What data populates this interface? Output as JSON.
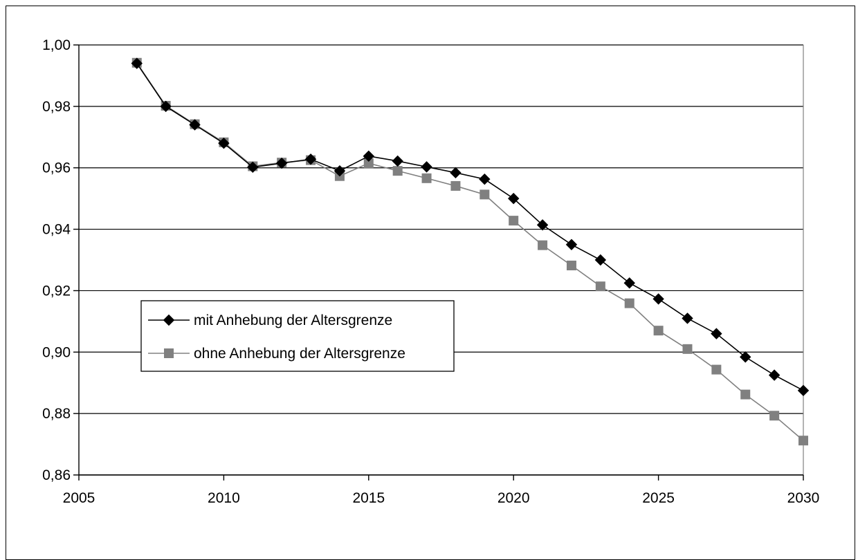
{
  "chart_data": {
    "type": "line",
    "title": "",
    "xlabel": "",
    "ylabel": "",
    "xlim": [
      2005,
      2030
    ],
    "ylim": [
      0.86,
      1.0
    ],
    "x_ticks": [
      2005,
      2010,
      2015,
      2020,
      2025,
      2030
    ],
    "y_ticks": [
      0.86,
      0.88,
      0.9,
      0.92,
      0.94,
      0.96,
      0.98,
      1.0
    ],
    "x_tick_labels": [
      "2005",
      "2010",
      "2015",
      "2020",
      "2025",
      "2030"
    ],
    "y_tick_labels": [
      "0,86",
      "0,88",
      "0,90",
      "0,92",
      "0,94",
      "0,96",
      "0,98",
      "1,00"
    ],
    "grid": "horizontal",
    "legend_position": "left",
    "x": [
      2007,
      2008,
      2009,
      2010,
      2011,
      2012,
      2013,
      2014,
      2015,
      2016,
      2017,
      2018,
      2019,
      2020,
      2021,
      2022,
      2023,
      2024,
      2025,
      2026,
      2027,
      2028,
      2029,
      2030
    ],
    "series": [
      {
        "name": "mit Anhebung der Altersgrenze",
        "marker": "diamond",
        "color": "#000000",
        "values": [
          0.994,
          0.98,
          0.974,
          0.968,
          0.9602,
          0.9615,
          0.9628,
          0.959,
          0.9638,
          0.9622,
          0.9603,
          0.9584,
          0.9563,
          0.95,
          0.9414,
          0.935,
          0.93,
          0.9225,
          0.9173,
          0.911,
          0.906,
          0.8984,
          0.8925,
          0.8875
        ]
      },
      {
        "name": "ohne Anhebung der Altersgrenze",
        "marker": "square",
        "color": "#808080",
        "values": [
          0.9942,
          0.9802,
          0.9742,
          0.9683,
          0.9605,
          0.9617,
          0.9625,
          0.9573,
          0.9615,
          0.959,
          0.9566,
          0.9541,
          0.9513,
          0.9428,
          0.9348,
          0.9282,
          0.9214,
          0.9159,
          0.907,
          0.901,
          0.8943,
          0.8862,
          0.8793,
          0.8712
        ]
      }
    ]
  }
}
